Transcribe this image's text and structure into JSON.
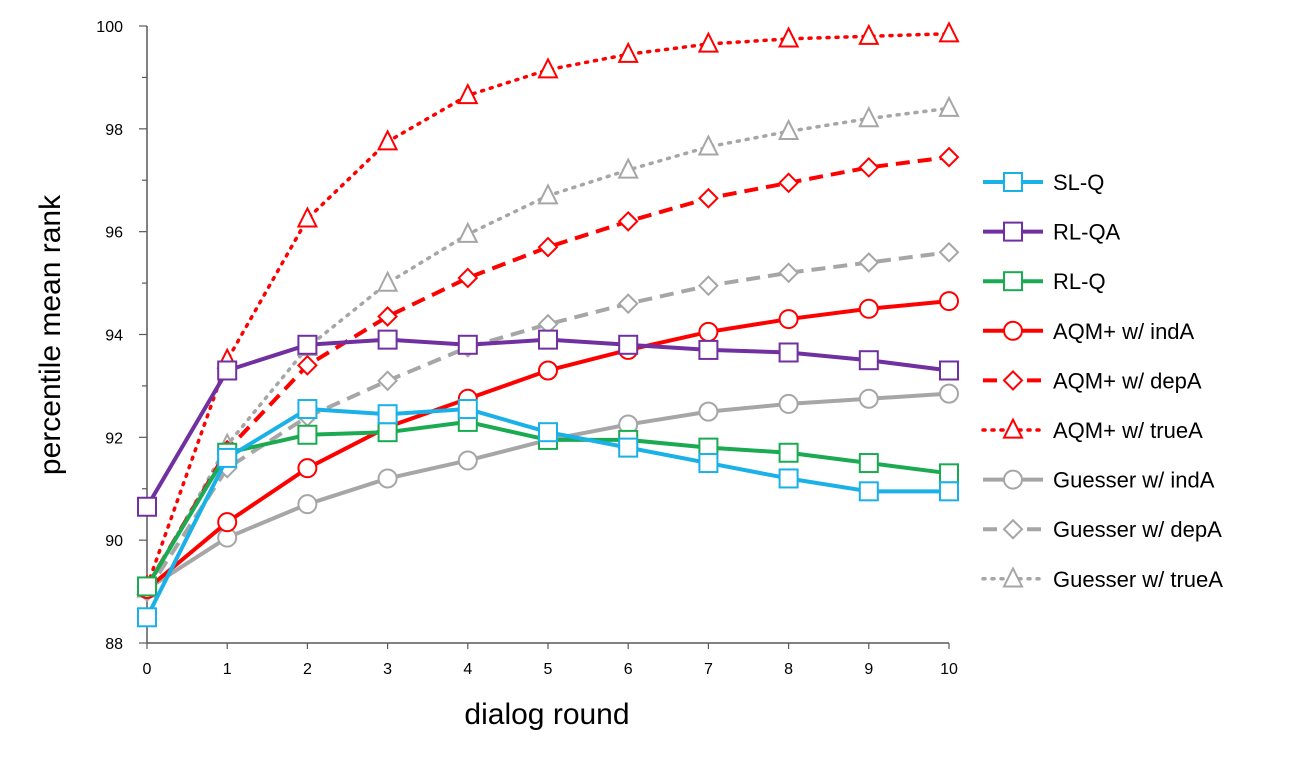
{
  "chart_data": {
    "type": "line",
    "title": "",
    "xlabel": "dialog round",
    "ylabel": "percentile mean rank",
    "x": [
      0,
      1,
      2,
      3,
      4,
      5,
      6,
      7,
      8,
      9,
      10
    ],
    "xlim": [
      0,
      10
    ],
    "ylim": [
      88,
      100
    ],
    "yticks": [
      88,
      90,
      92,
      94,
      96,
      98,
      100
    ],
    "legend_position": "right",
    "series": [
      {
        "name": "SL-Q",
        "color": "#1ab0e8",
        "line": "solid",
        "marker": "square",
        "values": [
          88.5,
          91.6,
          92.55,
          92.45,
          92.55,
          92.1,
          91.8,
          91.5,
          91.2,
          90.95,
          90.95
        ]
      },
      {
        "name": "RL-QA",
        "color": "#7030a0",
        "line": "solid",
        "marker": "square",
        "values": [
          90.65,
          93.3,
          93.8,
          93.9,
          93.8,
          93.9,
          93.8,
          93.7,
          93.65,
          93.5,
          93.3
        ]
      },
      {
        "name": "RL-Q",
        "color": "#1aaa52",
        "line": "solid",
        "marker": "square",
        "values": [
          89.1,
          91.7,
          92.05,
          92.1,
          92.3,
          91.95,
          91.95,
          91.8,
          91.7,
          91.5,
          91.3
        ]
      },
      {
        "name": "AQM+ w/ indA",
        "color": "#ff0000",
        "line": "solid",
        "marker": "circle",
        "values": [
          89.05,
          90.35,
          91.4,
          92.2,
          92.75,
          93.3,
          93.7,
          94.05,
          94.3,
          94.5,
          94.65
        ]
      },
      {
        "name": "AQM+ w/ depA",
        "color": "#ff0000",
        "line": "dashed",
        "marker": "diamond",
        "values": [
          89.1,
          91.75,
          93.4,
          94.35,
          95.1,
          95.7,
          96.2,
          96.65,
          96.95,
          97.25,
          97.45
        ]
      },
      {
        "name": "AQM+ w/ trueA",
        "color": "#ff0000",
        "line": "dotted",
        "marker": "triangle",
        "values": [
          89.1,
          93.5,
          96.25,
          97.75,
          98.65,
          99.15,
          99.45,
          99.65,
          99.75,
          99.8,
          99.85
        ]
      },
      {
        "name": "Guesser w/ indA",
        "color": "#a6a6a6",
        "line": "solid",
        "marker": "circle",
        "values": [
          89.05,
          90.05,
          90.7,
          91.2,
          91.55,
          91.95,
          92.25,
          92.5,
          92.65,
          92.75,
          92.85
        ]
      },
      {
        "name": "Guesser w/ depA",
        "color": "#a6a6a6",
        "line": "dashed",
        "marker": "diamond",
        "values": [
          89.0,
          91.4,
          92.4,
          93.1,
          93.75,
          94.2,
          94.6,
          94.95,
          95.2,
          95.4,
          95.6
        ]
      },
      {
        "name": "Guesser w/ trueA",
        "color": "#a6a6a6",
        "line": "dotted",
        "marker": "triangle",
        "values": [
          89.05,
          91.85,
          93.75,
          95.0,
          95.95,
          96.7,
          97.2,
          97.65,
          97.95,
          98.2,
          98.4
        ]
      }
    ]
  }
}
